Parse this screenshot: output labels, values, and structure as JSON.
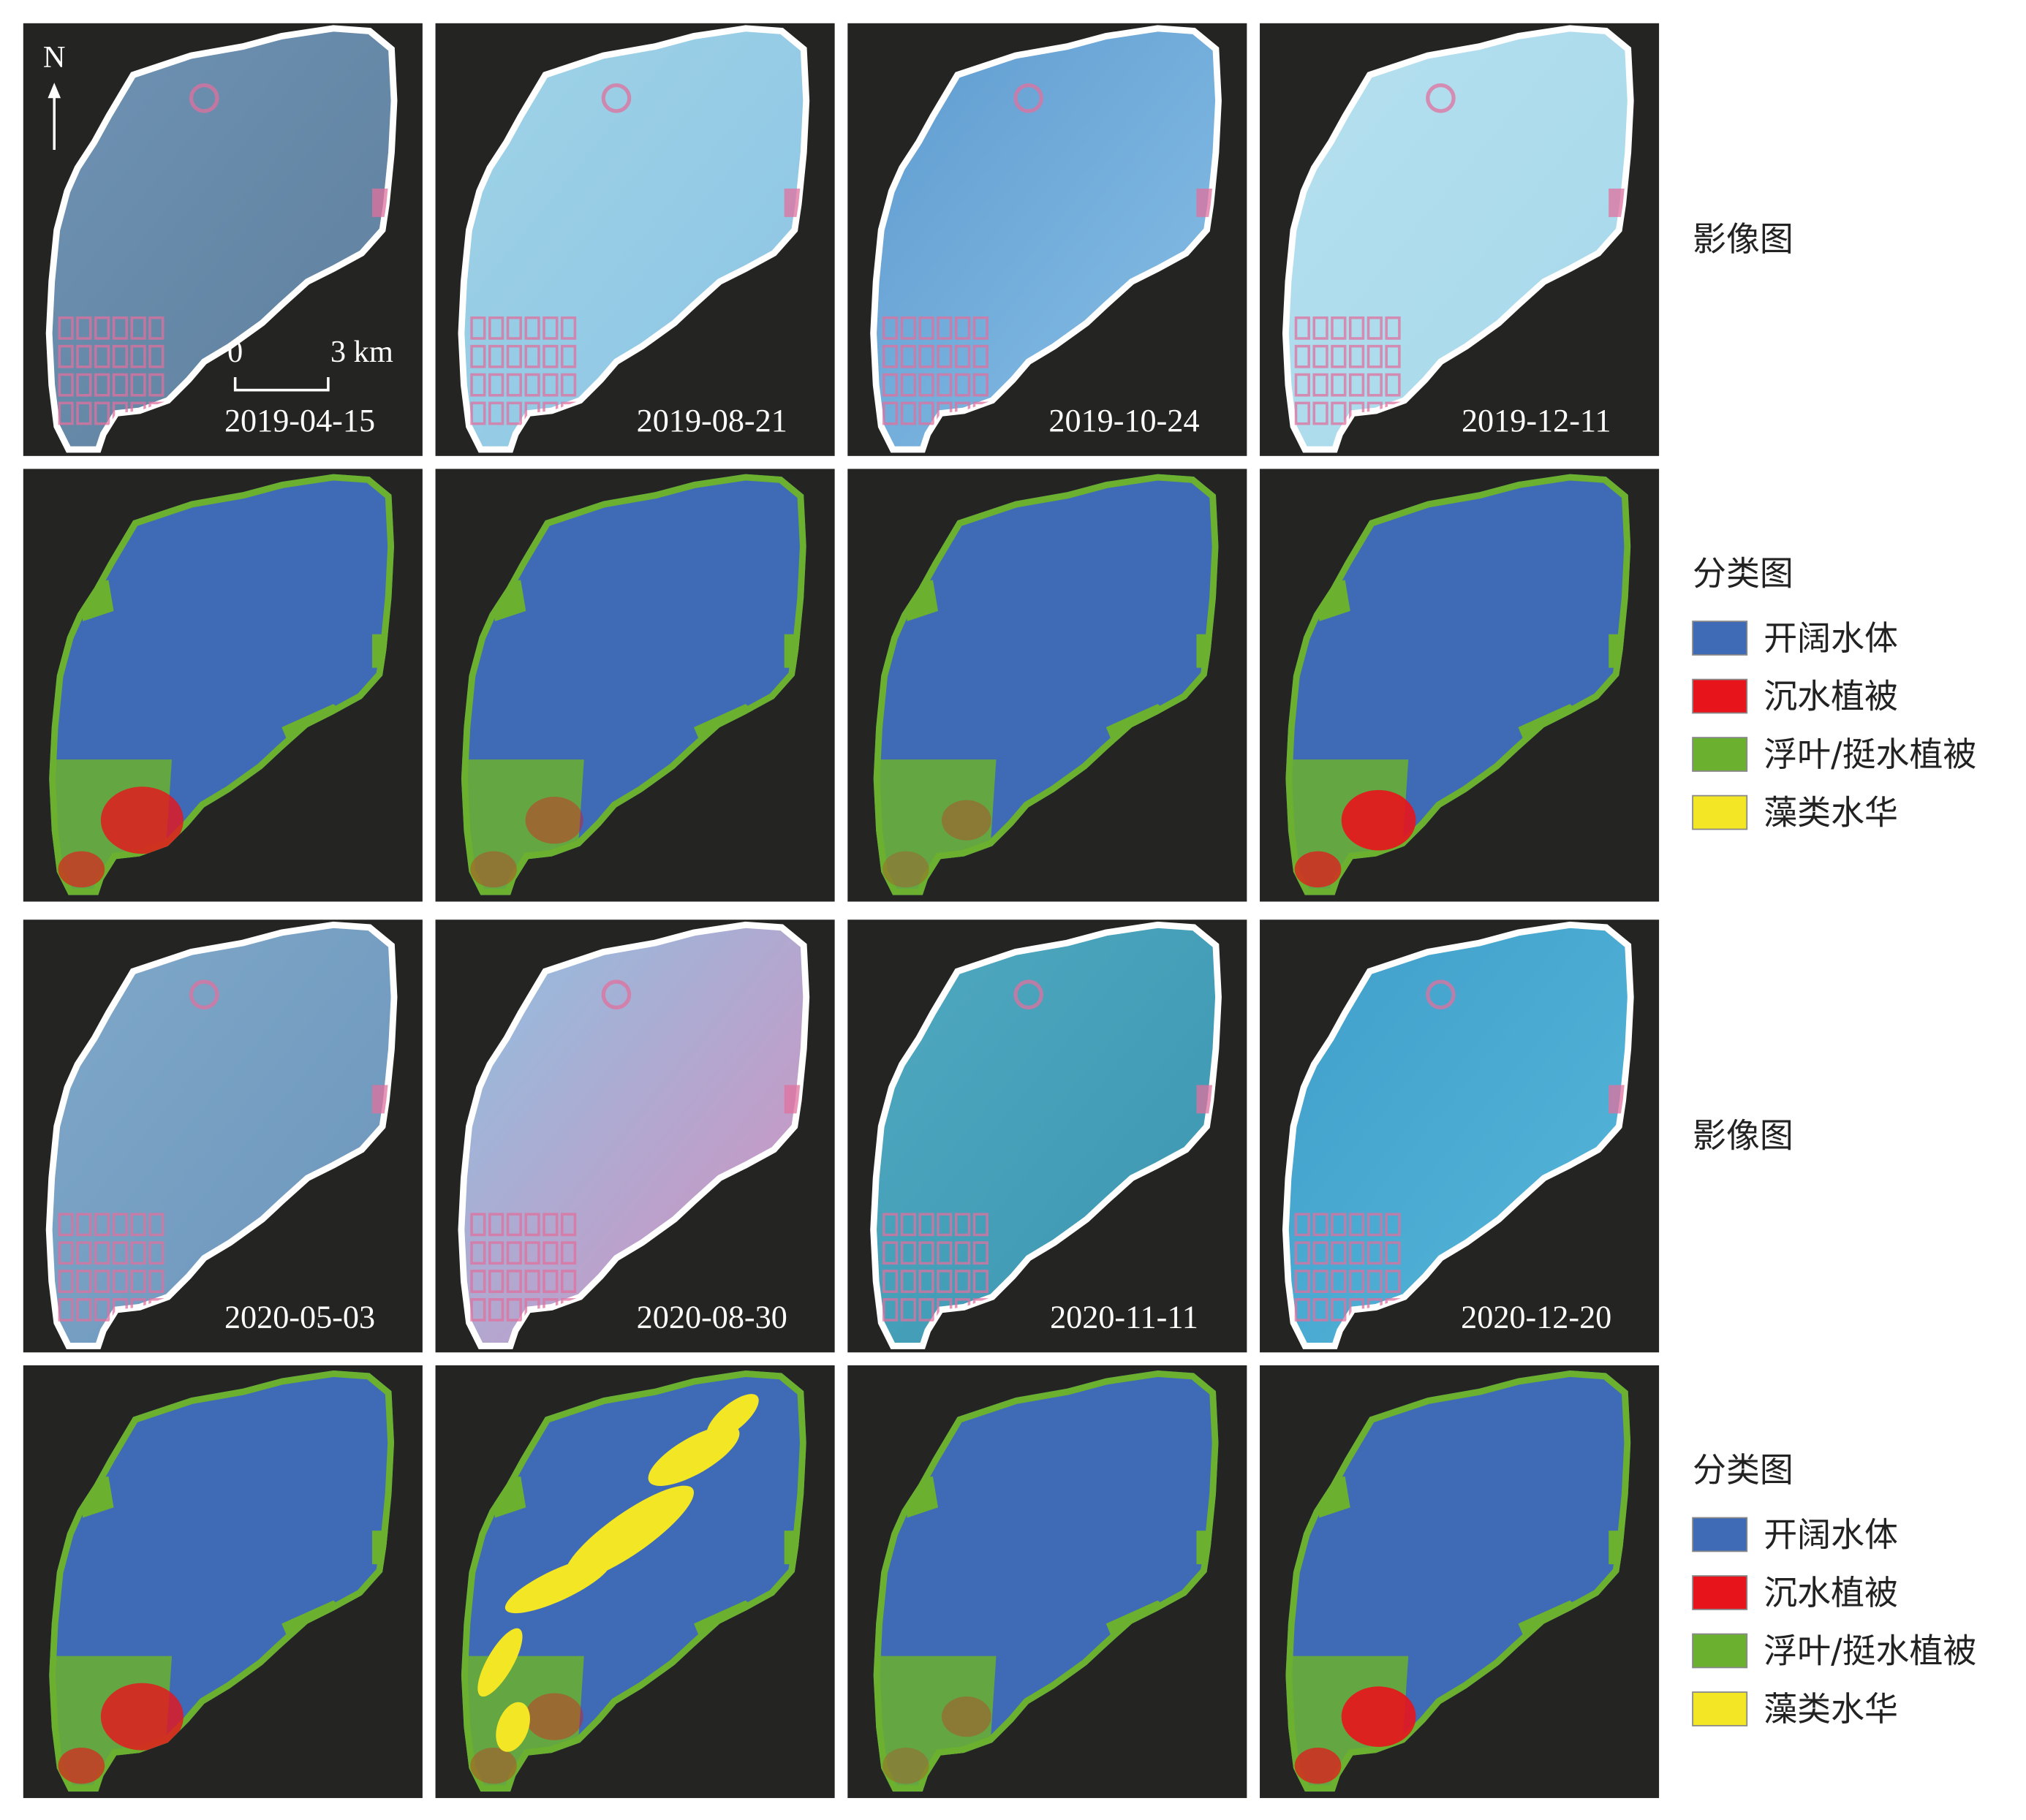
{
  "figure": {
    "north_label": "N",
    "scale_bar": {
      "start": "0",
      "end": "3 km"
    },
    "rows": [
      {
        "label": "影像图",
        "dates": [
          "2019-04-15",
          "2019-08-21",
          "2019-10-24",
          "2019-12-11"
        ]
      },
      {
        "label": "分类图",
        "legend": [
          {
            "name": "开阔水体",
            "color": "#3f6ab5"
          },
          {
            "name": "沉水植被",
            "color": "#e8141c"
          },
          {
            "name": "浮叶/挺水植被",
            "color": "#6bb02e"
          },
          {
            "name": "藻类水华",
            "color": "#f2e625"
          }
        ]
      },
      {
        "label": "影像图",
        "dates": [
          "2020-05-03",
          "2020-08-30",
          "2020-11-11",
          "2020-12-20"
        ]
      },
      {
        "label": "分类图",
        "legend": [
          {
            "name": "开阔水体",
            "color": "#3f6ab5"
          },
          {
            "name": "沉水植被",
            "color": "#e8141c"
          },
          {
            "name": "浮叶/挺水植被",
            "color": "#6bb02e"
          },
          {
            "name": "藻类水华",
            "color": "#f2e625"
          }
        ]
      }
    ]
  }
}
